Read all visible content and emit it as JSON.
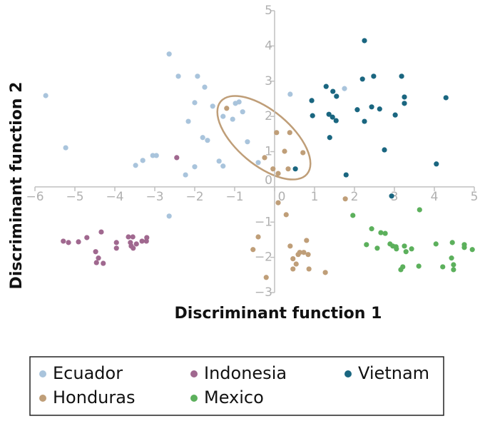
{
  "chart_data": {
    "type": "scatter",
    "x_label": "Discriminant function 1",
    "y_label": "Discriminant function 2",
    "xlim": [
      -6,
      5
    ],
    "ylim": [
      -3,
      5
    ],
    "xticks": [
      {
        "value": -6,
        "label": "−6"
      },
      {
        "value": -5,
        "label": "−5"
      },
      {
        "value": -4,
        "label": "−4"
      },
      {
        "value": -3,
        "label": "−3"
      },
      {
        "value": -2,
        "label": "−2"
      },
      {
        "value": -1,
        "label": "−1"
      },
      0,
      1,
      2,
      3,
      4,
      5
    ],
    "yticks": [
      {
        "value": -3,
        "label": "−3"
      },
      {
        "value": -2,
        "label": "−2"
      },
      {
        "value": -1,
        "label": "−1"
      },
      0,
      1,
      2,
      3,
      4,
      5
    ],
    "series": [
      {
        "name": "Ecuador",
        "color": "#a9c4dc",
        "x": [
          -5.73,
          -5.23,
          -2.64,
          -2.41,
          -1.93,
          -1.75,
          -2.0,
          -1.55,
          -2.16,
          -1.8,
          -1.68,
          -3.05,
          -2.96,
          -3.3,
          -3.48,
          -2.0,
          -2.23,
          -1.39,
          -1.29,
          -1.29,
          -1.05,
          -0.98,
          -0.89,
          -0.8,
          -0.68,
          -0.41,
          0.39,
          1.75,
          -2.64
        ],
        "values": [
          2.59,
          1.11,
          3.77,
          3.14,
          3.14,
          2.83,
          2.39,
          2.29,
          1.86,
          1.4,
          1.32,
          0.89,
          0.89,
          0.75,
          0.61,
          0.57,
          0.34,
          0.73,
          0.59,
          2.0,
          1.92,
          2.37,
          2.41,
          2.13,
          1.28,
          0.69,
          2.63,
          2.79,
          -0.83
        ]
      },
      {
        "name": "Indonesia",
        "color": "#a0688f",
        "x": [
          -2.45,
          -5.29,
          -5.16,
          -4.91,
          -4.7,
          -4.34,
          -4.48,
          -4.41,
          -4.46,
          -4.29,
          -3.96,
          -3.96,
          -3.66,
          -3.55,
          -3.61,
          -3.59,
          -3.54,
          -3.46,
          -3.32,
          -3.2,
          -3.21
        ],
        "values": [
          0.83,
          -1.54,
          -1.58,
          -1.56,
          -1.44,
          -1.28,
          -1.84,
          -2.02,
          -2.15,
          -2.17,
          -1.58,
          -1.74,
          -1.42,
          -1.42,
          -1.58,
          -1.68,
          -1.74,
          -1.62,
          -1.54,
          -1.44,
          -1.54
        ]
      },
      {
        "name": "Vietnam",
        "color": "#1a6680",
        "x": [
          2.25,
          2.2,
          2.48,
          3.18,
          1.29,
          1.46,
          1.55,
          0.93,
          2.07,
          2.43,
          2.63,
          3.25,
          3.25,
          4.29,
          0.95,
          1.36,
          1.45,
          1.54,
          2.25,
          3.02,
          1.38,
          2.75,
          0.52,
          4.05,
          1.79,
          2.93
        ],
        "values": [
          4.15,
          3.06,
          3.14,
          3.14,
          2.85,
          2.71,
          2.57,
          2.45,
          2.19,
          2.27,
          2.21,
          2.55,
          2.37,
          2.53,
          2.02,
          2.06,
          1.98,
          1.88,
          1.86,
          2.04,
          1.4,
          1.05,
          0.51,
          0.65,
          0.34,
          -0.26
        ]
      },
      {
        "name": "Honduras",
        "color": "#bf9e78",
        "x": [
          -1.2,
          0.05,
          0.38,
          -0.25,
          0.25,
          0.71,
          -0.04,
          0.09,
          0.34,
          0.09,
          0.29,
          1.77,
          -0.41,
          -0.54,
          -0.21,
          0.39,
          0.8,
          0.63,
          0.73,
          0.84,
          0.59,
          0.46,
          0.54,
          0.46,
          0.86,
          1.27
        ],
        "values": [
          2.23,
          1.54,
          1.54,
          0.83,
          1.01,
          0.97,
          0.51,
          0.38,
          0.51,
          -0.45,
          -0.79,
          -0.34,
          -1.42,
          -1.78,
          -2.57,
          -1.68,
          -1.52,
          -1.86,
          -1.86,
          -1.92,
          -1.92,
          -2.04,
          -2.19,
          -2.33,
          -2.33,
          -2.43
        ]
      },
      {
        "name": "Mexico",
        "color": "#5cb05c",
        "x": [
          1.96,
          3.63,
          2.43,
          2.66,
          2.77,
          2.3,
          2.57,
          2.89,
          2.96,
          3.05,
          3.04,
          3.25,
          3.29,
          3.43,
          4.04,
          4.45,
          4.75,
          4.75,
          4.95,
          4.43,
          3.21,
          3.16,
          3.61,
          4.21,
          4.48,
          4.48
        ],
        "values": [
          -0.81,
          -0.65,
          -1.19,
          -1.3,
          -1.32,
          -1.64,
          -1.74,
          -1.62,
          -1.68,
          -1.76,
          -1.7,
          -1.68,
          -1.84,
          -1.76,
          -1.62,
          -1.58,
          -1.64,
          -1.72,
          -1.78,
          -2.02,
          -2.27,
          -2.35,
          -2.25,
          -2.27,
          -2.21,
          -2.35
        ]
      }
    ]
  }
}
